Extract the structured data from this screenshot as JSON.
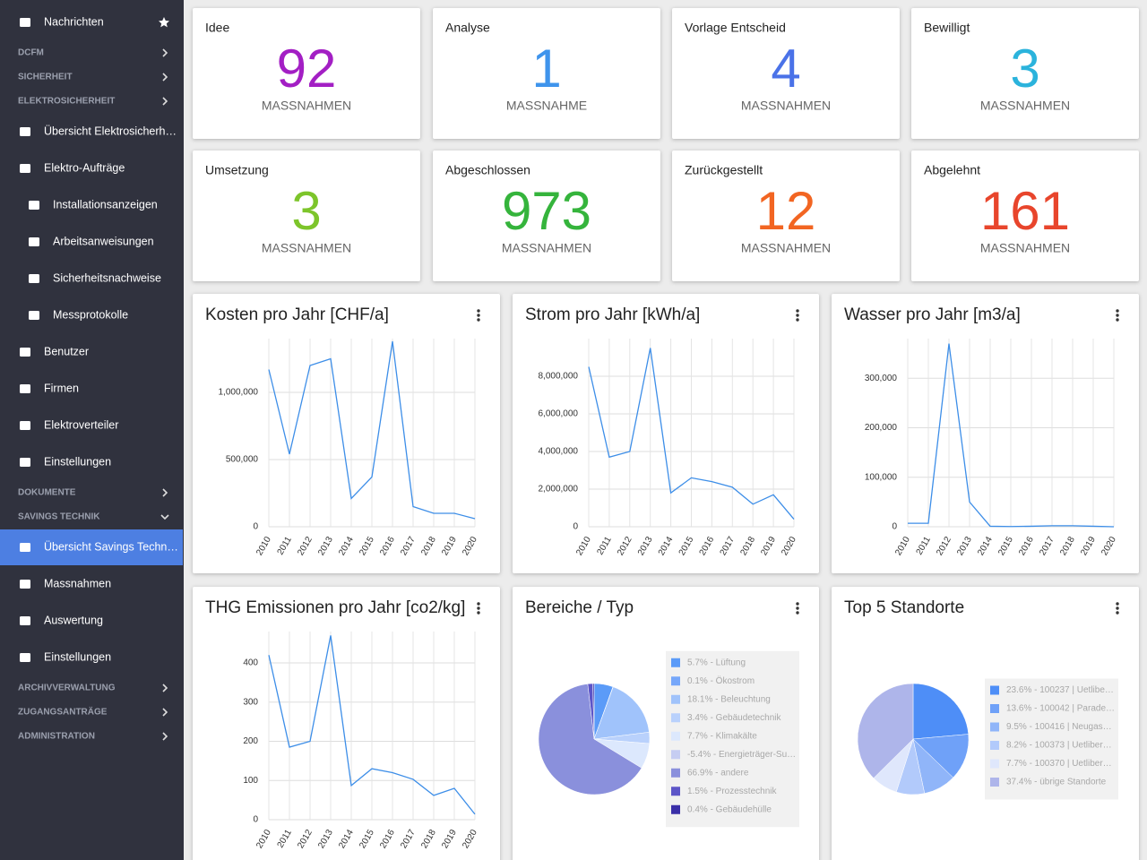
{
  "sidebar": [
    {
      "label": "Nachrichten",
      "kind": "item"
    },
    {
      "label": "DCFM",
      "kind": "section"
    },
    {
      "label": "SICHERHEIT",
      "kind": "section"
    },
    {
      "label": "ELEKTROSICHERHEIT",
      "kind": "section"
    },
    {
      "label": "Übersicht Elektrosicherh…",
      "kind": "item"
    },
    {
      "label": "Elektro-Aufträge",
      "kind": "item"
    },
    {
      "label": "Installationsanzeigen",
      "kind": "subitem"
    },
    {
      "label": "Arbeitsanweisungen",
      "kind": "subitem"
    },
    {
      "label": "Sicherheitsnachweise",
      "kind": "subitem"
    },
    {
      "label": "Messprotokolle",
      "kind": "subitem"
    },
    {
      "label": "Benutzer",
      "kind": "item"
    },
    {
      "label": "Firmen",
      "kind": "item"
    },
    {
      "label": "Elektroverteiler",
      "kind": "item"
    },
    {
      "label": "Einstellungen",
      "kind": "item"
    },
    {
      "label": "DOKUMENTE",
      "kind": "section"
    },
    {
      "label": "SAVINGS TECHNIK",
      "kind": "section",
      "expanded": true
    },
    {
      "label": "Übersicht Savings Techn…",
      "kind": "item",
      "active": true
    },
    {
      "label": "Massnahmen",
      "kind": "item"
    },
    {
      "label": "Auswertung",
      "kind": "item"
    },
    {
      "label": "Einstellungen",
      "kind": "item"
    },
    {
      "label": "ARCHIVVERWALTUNG",
      "kind": "section"
    },
    {
      "label": "ZUGANGSANTRÄGE",
      "kind": "section"
    },
    {
      "label": "ADMINISTRATION",
      "kind": "section"
    }
  ],
  "kpis": [
    {
      "title": "Idee",
      "value": 92,
      "unit": "MASSNAHMEN",
      "color": "#a31fc4"
    },
    {
      "title": "Analyse",
      "value": 1,
      "unit": "MASSNAHME",
      "color": "#3f94ec"
    },
    {
      "title": "Vorlage Entscheid",
      "value": 4,
      "unit": "MASSNAHMEN",
      "color": "#4a72e8"
    },
    {
      "title": "Bewilligt",
      "value": 3,
      "unit": "MASSNAHMEN",
      "color": "#2bb3dc"
    },
    {
      "title": "Umsetzung",
      "value": 3,
      "unit": "MASSNAHMEN",
      "color": "#7dc52b"
    },
    {
      "title": "Abgeschlossen",
      "value": 973,
      "unit": "MASSNAHMEN",
      "color": "#35b43c"
    },
    {
      "title": "Zurückgestellt",
      "value": 12,
      "unit": "MASSNAHMEN",
      "color": "#f26522"
    },
    {
      "title": "Abgelehnt",
      "value": 161,
      "unit": "MASSNAHMEN",
      "color": "#e8452c"
    }
  ],
  "chart_data": [
    {
      "type": "line",
      "title": "Kosten pro Jahr [CHF/a]",
      "categories": [
        "2010",
        "2011",
        "2012",
        "2013",
        "2014",
        "2015",
        "2016",
        "2017",
        "2018",
        "2019",
        "2020"
      ],
      "values": [
        1170000,
        540000,
        1200000,
        1250000,
        210000,
        370000,
        1380000,
        150000,
        100000,
        100000,
        60000
      ],
      "color": "#3d8ee8",
      "ylim": [
        0,
        1400000
      ],
      "yticks": [
        0,
        {
          "value": 500000,
          "label": "500,000"
        },
        {
          "value": 1000000,
          "label": "1,000,000"
        }
      ],
      "grid": true
    },
    {
      "type": "line",
      "title": "Strom pro Jahr [kWh/a]",
      "categories": [
        "2010",
        "2011",
        "2012",
        "2013",
        "2014",
        "2015",
        "2016",
        "2017",
        "2018",
        "2019",
        "2020"
      ],
      "values": [
        8500000,
        3700000,
        4000000,
        9500000,
        1800000,
        2600000,
        2400000,
        2100000,
        1200000,
        1700000,
        400000
      ],
      "color": "#3d8ee8",
      "ylim": [
        0,
        10000000
      ],
      "yticks": [
        0,
        {
          "value": 2000000,
          "label": "2,000,000"
        },
        {
          "value": 4000000,
          "label": "4,000,000"
        },
        {
          "value": 6000000,
          "label": "6,000,000"
        },
        {
          "value": 8000000,
          "label": "8,000,000"
        }
      ],
      "grid": true
    },
    {
      "type": "line",
      "title": "Wasser pro Jahr [m3/a]",
      "categories": [
        "2010",
        "2011",
        "2012",
        "2013",
        "2014",
        "2015",
        "2016",
        "2017",
        "2018",
        "2019",
        "2020"
      ],
      "values": [
        7000,
        7000,
        370000,
        50000,
        1000,
        500,
        1000,
        2000,
        2000,
        1000,
        0
      ],
      "color": "#3d8ee8",
      "ylim": [
        0,
        380000
      ],
      "yticks": [
        0,
        {
          "value": 100000,
          "label": "100,000"
        },
        {
          "value": 200000,
          "label": "200,000"
        },
        {
          "value": 300000,
          "label": "300,000"
        }
      ],
      "grid": true
    },
    {
      "type": "line",
      "title": "THG Emissionen pro Jahr [co2/kg]",
      "categories": [
        "2010",
        "2011",
        "2012",
        "2013",
        "2014",
        "2015",
        "2016",
        "2017",
        "2018",
        "2019",
        "2020"
      ],
      "values": [
        420,
        185,
        200,
        470,
        87,
        130,
        120,
        103,
        62,
        80,
        14
      ],
      "color": "#3d8ee8",
      "ylim": [
        0,
        480
      ],
      "yticks": [
        0,
        100,
        200,
        300,
        400
      ],
      "grid": true
    },
    {
      "type": "pie",
      "title": "Bereiche / Typ",
      "categories": [
        "5.7% - Lüftung",
        "0.1% - Ökostrom",
        "18.1% - Beleuchtung",
        "3.4% - Gebäudetechnik",
        "7.7% - Klimakälte",
        "-5.4% - Energieträger-Su…",
        "66.9% - andere",
        "1.5% - Prozesstechnik",
        "0.4% - Gebäudehülle"
      ],
      "values": [
        5.7,
        0.1,
        18.1,
        3.4,
        7.7,
        -5.4,
        66.9,
        1.5,
        0.4
      ],
      "colors": [
        "#5b9bf8",
        "#76a7fa",
        "#a0c3fb",
        "#b9d1fc",
        "#dce8fd",
        "#c6cdf2",
        "#8a90dc",
        "#5c55c8",
        "#3a2fa8"
      ]
    },
    {
      "type": "pie",
      "title": "Top 5 Standorte",
      "categories": [
        "23.6% - 100237 | Uetlibe…",
        "13.6% - 100042 | Parade…",
        "9.5% - 100416 | Neugas…",
        "8.2% - 100373 | Uetliber…",
        "7.7% - 100370 | Uetliber…",
        "37.4% - übrige Standorte"
      ],
      "values": [
        23.6,
        13.6,
        9.5,
        8.2,
        7.7,
        37.4
      ],
      "colors": [
        "#4e8ef7",
        "#6fa1f8",
        "#90b5f9",
        "#b2cafb",
        "#dfe7fc",
        "#aeb5ea"
      ]
    }
  ]
}
